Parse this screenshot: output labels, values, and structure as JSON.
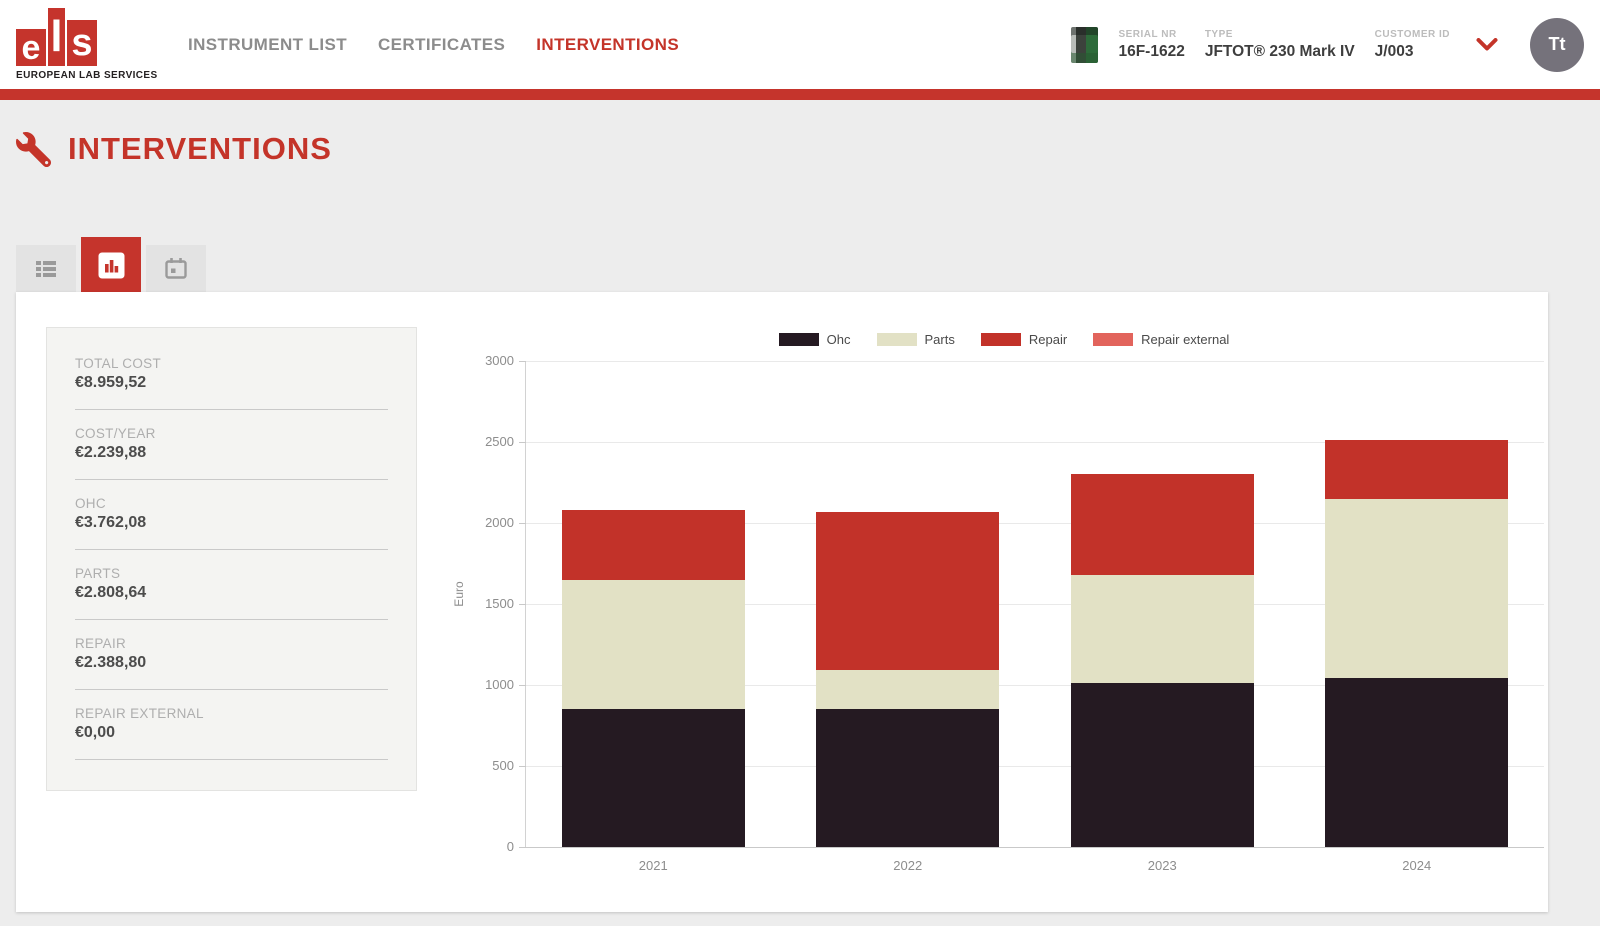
{
  "theme": {
    "accent": "#c5342c",
    "page_background": "#ededed",
    "avatar_background": "#75727b"
  },
  "header": {
    "logo": {
      "letters": [
        "e",
        "l",
        "s"
      ],
      "subtitle": "EUROPEAN LAB SERVICES"
    },
    "nav": [
      {
        "label": "INSTRUMENT LIST",
        "active": false
      },
      {
        "label": "CERTIFICATES",
        "active": false
      },
      {
        "label": "INTERVENTIONS",
        "active": true
      }
    ],
    "instrument": {
      "serial_label": "SERIAL NR",
      "serial": "16F-1622",
      "type_label": "TYPE",
      "type": "JFTOT® 230 Mark IV",
      "customer_label": "CUSTOMER ID",
      "customer": "J/003"
    },
    "avatar": "Tt"
  },
  "page": {
    "title": "INTERVENTIONS",
    "title_icon": "wrench-icon"
  },
  "tabs": [
    {
      "icon": "list-icon",
      "active": false
    },
    {
      "icon": "bar-chart-icon",
      "active": true
    },
    {
      "icon": "calendar-icon",
      "active": false
    }
  ],
  "stats": [
    {
      "label": "TOTAL COST",
      "value": "€8.959,52"
    },
    {
      "label": "COST/YEAR",
      "value": "€2.239,88"
    },
    {
      "label": "OHC",
      "value": "€3.762,08"
    },
    {
      "label": "PARTS",
      "value": "€2.808,64"
    },
    {
      "label": "REPAIR",
      "value": "€2.388,80"
    },
    {
      "label": "REPAIR EXTERNAL",
      "value": "€0,00"
    }
  ],
  "chart_data": {
    "type": "bar",
    "stacked": true,
    "categories": [
      "2021",
      "2022",
      "2023",
      "2024"
    ],
    "series": [
      {
        "name": "Ohc",
        "color": "#251a22",
        "values": [
          855,
          855,
          1010,
          1042
        ]
      },
      {
        "name": "Parts",
        "color": "#e2e1c5",
        "values": [
          795,
          235,
          672,
          1107
        ]
      },
      {
        "name": "Repair",
        "color": "#c23229",
        "values": [
          430,
          980,
          618,
          361
        ]
      },
      {
        "name": "Repair external",
        "color": "#e2645c",
        "values": [
          0,
          0,
          0,
          0
        ]
      }
    ],
    "stack_totals": [
      2080,
      2070,
      2300,
      2510
    ],
    "title": "",
    "xlabel": "",
    "ylabel": "Euro",
    "ylim": [
      0,
      3000
    ],
    "ytick_step": 500,
    "grid": true,
    "legend_position": "top"
  }
}
